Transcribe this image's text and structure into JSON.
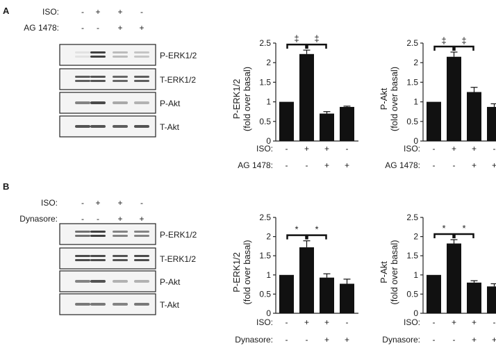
{
  "panels": [
    {
      "label": "A",
      "treatments": [
        {
          "name": "ISO:",
          "signs": [
            "-",
            "+",
            "+",
            "-"
          ]
        },
        {
          "name": "AG 1478:",
          "signs": [
            "-",
            "-",
            "+",
            "+"
          ]
        }
      ],
      "blot_labels": [
        "P-ERK1/2",
        "T-ERK1/2",
        "P-Akt",
        "T-Akt"
      ],
      "blot_intensity": [
        [
          0.05,
          0.9,
          0.25,
          0.2
        ],
        [
          0.75,
          0.8,
          0.7,
          0.75
        ],
        [
          0.55,
          0.85,
          0.35,
          0.3
        ],
        [
          0.8,
          0.8,
          0.75,
          0.8
        ]
      ]
    },
    {
      "label": "B",
      "treatments": [
        {
          "name": "ISO:",
          "signs": [
            "-",
            "+",
            "+",
            "-"
          ]
        },
        {
          "name": "Dynasore:",
          "signs": [
            "-",
            "-",
            "+",
            "+"
          ]
        }
      ],
      "blot_labels": [
        "P-ERK1/2",
        "T-ERK1/2",
        "P-Akt",
        "T-Akt"
      ],
      "blot_intensity": [
        [
          0.65,
          0.9,
          0.55,
          0.55
        ],
        [
          0.85,
          0.85,
          0.8,
          0.85
        ],
        [
          0.55,
          0.8,
          0.3,
          0.3
        ],
        [
          0.6,
          0.6,
          0.55,
          0.6
        ]
      ]
    }
  ],
  "chart_data": [
    {
      "type": "bar",
      "panel": "A",
      "ylabel": "P-ERK1/2 (fold over basal)",
      "ylim": [
        0,
        2.5
      ],
      "yticks": [
        "0",
        "0.5",
        "1",
        "1.5",
        "2",
        "2.5"
      ],
      "values": [
        1.0,
        2.22,
        0.7,
        0.87
      ],
      "errors": [
        0,
        0.1,
        0.05,
        0.02
      ],
      "significance": "‡",
      "treatments": [
        {
          "name": "ISO:",
          "signs": [
            "-",
            "+",
            "+",
            "-"
          ]
        },
        {
          "name": "AG 1478:",
          "signs": [
            "-",
            "-",
            "+",
            "+"
          ]
        }
      ]
    },
    {
      "type": "bar",
      "panel": "A",
      "ylabel": "P-Akt (fold over basal)",
      "ylim": [
        0,
        2.5
      ],
      "yticks": [
        "0",
        "0.5",
        "1",
        "1.5",
        "2",
        "2.5"
      ],
      "values": [
        1.0,
        2.15,
        1.25,
        0.87
      ],
      "errors": [
        0,
        0.12,
        0.12,
        0.08
      ],
      "significance": "‡",
      "treatments": [
        {
          "name": "ISO:",
          "signs": [
            "-",
            "+",
            "+",
            "-"
          ]
        },
        {
          "name": "AG 1478:",
          "signs": [
            "-",
            "-",
            "+",
            "+"
          ]
        }
      ]
    },
    {
      "type": "bar",
      "panel": "B",
      "ylabel": "P-ERK1/2 (fold over basal)",
      "ylim": [
        0,
        2.5
      ],
      "yticks": [
        "0",
        "0.5",
        "1",
        "1.5",
        "2",
        "2.5"
      ],
      "values": [
        1.0,
        1.72,
        0.93,
        0.77
      ],
      "errors": [
        0,
        0.17,
        0.1,
        0.12
      ],
      "significance": "*",
      "treatments": [
        {
          "name": "ISO:",
          "signs": [
            "-",
            "+",
            "+",
            "-"
          ]
        },
        {
          "name": "Dynasore:",
          "signs": [
            "-",
            "-",
            "+",
            "+"
          ]
        }
      ]
    },
    {
      "type": "bar",
      "panel": "B",
      "ylabel": "P-Akt (fold over basal)",
      "ylim": [
        0,
        2.5
      ],
      "yticks": [
        "0",
        "0.5",
        "1",
        "1.5",
        "2",
        "2.5"
      ],
      "values": [
        1.0,
        1.82,
        0.8,
        0.7
      ],
      "errors": [
        0,
        0.1,
        0.05,
        0.07
      ],
      "significance": "*",
      "treatments": [
        {
          "name": "ISO:",
          "signs": [
            "-",
            "+",
            "+",
            "-"
          ]
        },
        {
          "name": "Dynasore:",
          "signs": [
            "-",
            "-",
            "+",
            "+"
          ]
        }
      ]
    }
  ]
}
